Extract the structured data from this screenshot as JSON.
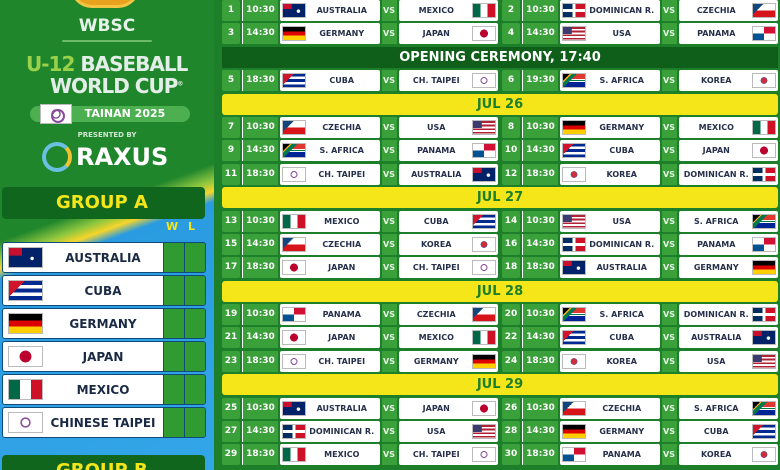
{
  "branding": {
    "org": "WBSC",
    "title_prefix": "U-12",
    "title_line1": "BASEBALL",
    "title_line2": "WORLD CUP",
    "registered": "®",
    "host": "TAINAN 2025",
    "presented_by": "PRESENTED BY",
    "sponsor": "RAXUS"
  },
  "standings": {
    "group_a": {
      "label": "GROUP A",
      "col_w": "W",
      "col_l": "L",
      "teams": [
        {
          "name": "AUSTRALIA",
          "flag": "AUS"
        },
        {
          "name": "CUBA",
          "flag": "CUB"
        },
        {
          "name": "GERMANY",
          "flag": "GER"
        },
        {
          "name": "JAPAN",
          "flag": "JPN"
        },
        {
          "name": "MEXICO",
          "flag": "MEX"
        },
        {
          "name": "CHINESE TAIPEI",
          "flag": "TPE"
        }
      ]
    },
    "group_b": {
      "label": "GROUP B"
    }
  },
  "colors": {
    "background": "#1d7f2a",
    "date_bar": "#f5e61a",
    "cell": "#3aa03a",
    "event_bar": "#0f5e1a"
  },
  "schedule": [
    {
      "type": "matches",
      "matches": [
        {
          "num": "1",
          "time": "10:30",
          "home": "AUSTRALIA",
          "home_flag": "AUS",
          "away": "MEXICO",
          "away_flag": "MEX"
        },
        {
          "num": "2",
          "time": "10:30",
          "home": "DOMINICAN R.",
          "home_flag": "DOM",
          "away": "CZECHIA",
          "away_flag": "CZE"
        }
      ]
    },
    {
      "type": "matches",
      "matches": [
        {
          "num": "3",
          "time": "14:30",
          "home": "GERMANY",
          "home_flag": "GER",
          "away": "JAPAN",
          "away_flag": "JPN"
        },
        {
          "num": "4",
          "time": "14:30",
          "home": "USA",
          "home_flag": "USA",
          "away": "PANAMA",
          "away_flag": "PAN"
        }
      ]
    },
    {
      "type": "event",
      "label": "OPENING CEREMONY, 17:40"
    },
    {
      "type": "matches",
      "matches": [
        {
          "num": "5",
          "time": "18:30",
          "home": "CUBA",
          "home_flag": "CUB",
          "away": "CH. TAIPEI",
          "away_flag": "TPE"
        },
        {
          "num": "6",
          "time": "19:30",
          "home": "S. AFRICA",
          "home_flag": "RSA",
          "away": "KOREA",
          "away_flag": "KOR"
        }
      ]
    },
    {
      "type": "date",
      "label": "JUL 26"
    },
    {
      "type": "matches",
      "matches": [
        {
          "num": "7",
          "time": "10:30",
          "home": "CZECHIA",
          "home_flag": "CZE",
          "away": "USA",
          "away_flag": "USA"
        },
        {
          "num": "8",
          "time": "10:30",
          "home": "GERMANY",
          "home_flag": "GER",
          "away": "MEXICO",
          "away_flag": "MEX"
        }
      ]
    },
    {
      "type": "matches",
      "matches": [
        {
          "num": "9",
          "time": "14:30",
          "home": "S. AFRICA",
          "home_flag": "RSA",
          "away": "PANAMA",
          "away_flag": "PAN"
        },
        {
          "num": "10",
          "time": "14:30",
          "home": "CUBA",
          "home_flag": "CUB",
          "away": "JAPAN",
          "away_flag": "JPN"
        }
      ]
    },
    {
      "type": "matches",
      "matches": [
        {
          "num": "11",
          "time": "18:30",
          "home": "CH. TAIPEI",
          "home_flag": "TPE",
          "away": "AUSTRALIA",
          "away_flag": "AUS"
        },
        {
          "num": "12",
          "time": "18:30",
          "home": "KOREA",
          "home_flag": "KOR",
          "away": "DOMINICAN R.",
          "away_flag": "DOM"
        }
      ]
    },
    {
      "type": "date",
      "label": "JUL 27"
    },
    {
      "type": "matches",
      "matches": [
        {
          "num": "13",
          "time": "10:30",
          "home": "MEXICO",
          "home_flag": "MEX",
          "away": "CUBA",
          "away_flag": "CUB"
        },
        {
          "num": "14",
          "time": "10:30",
          "home": "USA",
          "home_flag": "USA",
          "away": "S. AFRICA",
          "away_flag": "RSA"
        }
      ]
    },
    {
      "type": "matches",
      "matches": [
        {
          "num": "15",
          "time": "14:30",
          "home": "CZECHIA",
          "home_flag": "CZE",
          "away": "KOREA",
          "away_flag": "KOR"
        },
        {
          "num": "16",
          "time": "14:30",
          "home": "DOMINICAN R.",
          "home_flag": "DOM",
          "away": "PANAMA",
          "away_flag": "PAN"
        }
      ]
    },
    {
      "type": "matches",
      "matches": [
        {
          "num": "17",
          "time": "18:30",
          "home": "JAPAN",
          "home_flag": "JPN",
          "away": "CH. TAIPEI",
          "away_flag": "TPE"
        },
        {
          "num": "18",
          "time": "18:30",
          "home": "AUSTRALIA",
          "home_flag": "AUS",
          "away": "GERMANY",
          "away_flag": "GER"
        }
      ]
    },
    {
      "type": "date",
      "label": "JUL 28"
    },
    {
      "type": "matches",
      "matches": [
        {
          "num": "19",
          "time": "10:30",
          "home": "PANAMA",
          "home_flag": "PAN",
          "away": "CZECHIA",
          "away_flag": "CZE"
        },
        {
          "num": "20",
          "time": "10:30",
          "home": "S. AFRICA",
          "home_flag": "RSA",
          "away": "DOMINICAN R.",
          "away_flag": "DOM"
        }
      ]
    },
    {
      "type": "matches",
      "matches": [
        {
          "num": "21",
          "time": "14:30",
          "home": "JAPAN",
          "home_flag": "JPN",
          "away": "MEXICO",
          "away_flag": "MEX"
        },
        {
          "num": "22",
          "time": "14:30",
          "home": "CUBA",
          "home_flag": "CUB",
          "away": "AUSTRALIA",
          "away_flag": "AUS"
        }
      ]
    },
    {
      "type": "matches",
      "matches": [
        {
          "num": "23",
          "time": "18:30",
          "home": "CH. TAIPEI",
          "home_flag": "TPE",
          "away": "GERMANY",
          "away_flag": "GER"
        },
        {
          "num": "24",
          "time": "18:30",
          "home": "KOREA",
          "home_flag": "KOR",
          "away": "USA",
          "away_flag": "USA"
        }
      ]
    },
    {
      "type": "date",
      "label": "JUL 29"
    },
    {
      "type": "matches",
      "matches": [
        {
          "num": "25",
          "time": "10:30",
          "home": "AUSTRALIA",
          "home_flag": "AUS",
          "away": "JAPAN",
          "away_flag": "JPN"
        },
        {
          "num": "26",
          "time": "10:30",
          "home": "CZECHIA",
          "home_flag": "CZE",
          "away": "S. AFRICA",
          "away_flag": "RSA"
        }
      ]
    },
    {
      "type": "matches",
      "matches": [
        {
          "num": "27",
          "time": "14:30",
          "home": "DOMINICAN R.",
          "home_flag": "DOM",
          "away": "USA",
          "away_flag": "USA"
        },
        {
          "num": "28",
          "time": "14:30",
          "home": "GERMANY",
          "home_flag": "GER",
          "away": "CUBA",
          "away_flag": "CUB"
        }
      ]
    },
    {
      "type": "matches",
      "matches": [
        {
          "num": "29",
          "time": "18:30",
          "home": "MEXICO",
          "home_flag": "MEX",
          "away": "CH. TAIPEI",
          "away_flag": "TPE"
        },
        {
          "num": "30",
          "time": "18:30",
          "home": "PANAMA",
          "home_flag": "PAN",
          "away": "KOREA",
          "away_flag": "KOR"
        }
      ]
    }
  ],
  "vs_label": "VS"
}
